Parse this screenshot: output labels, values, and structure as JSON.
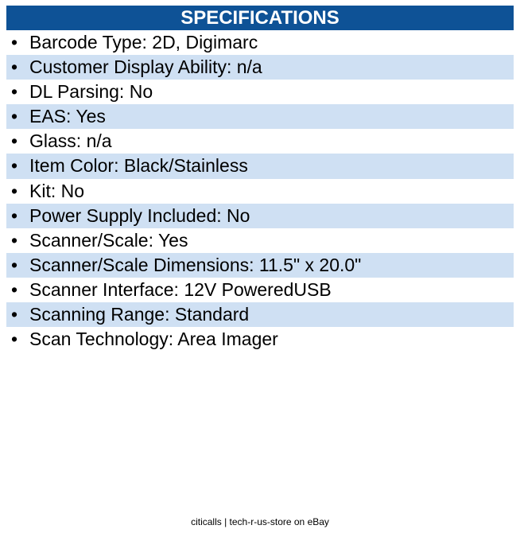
{
  "header": {
    "title": "SPECIFICATIONS"
  },
  "bullet": "•",
  "specs": [
    "Barcode Type: 2D, Digimarc",
    "Customer Display Ability: n/a",
    "DL Parsing: No",
    "EAS: Yes",
    "Glass: n/a",
    "Item Color: Black/Stainless",
    "Kit: No",
    "Power Supply Included: No",
    "Scanner/Scale: Yes",
    "Scanner/Scale Dimensions: 11.5\" x 20.0\"",
    "Scanner Interface: 12V PoweredUSB",
    "Scanning Range: Standard",
    "Scan Technology: Area Imager"
  ],
  "footer": {
    "text": "citicalls | tech-r-us-store on eBay"
  },
  "colors": {
    "header_bg": "#0e5296",
    "stripe_bg": "#cfe0f3"
  }
}
